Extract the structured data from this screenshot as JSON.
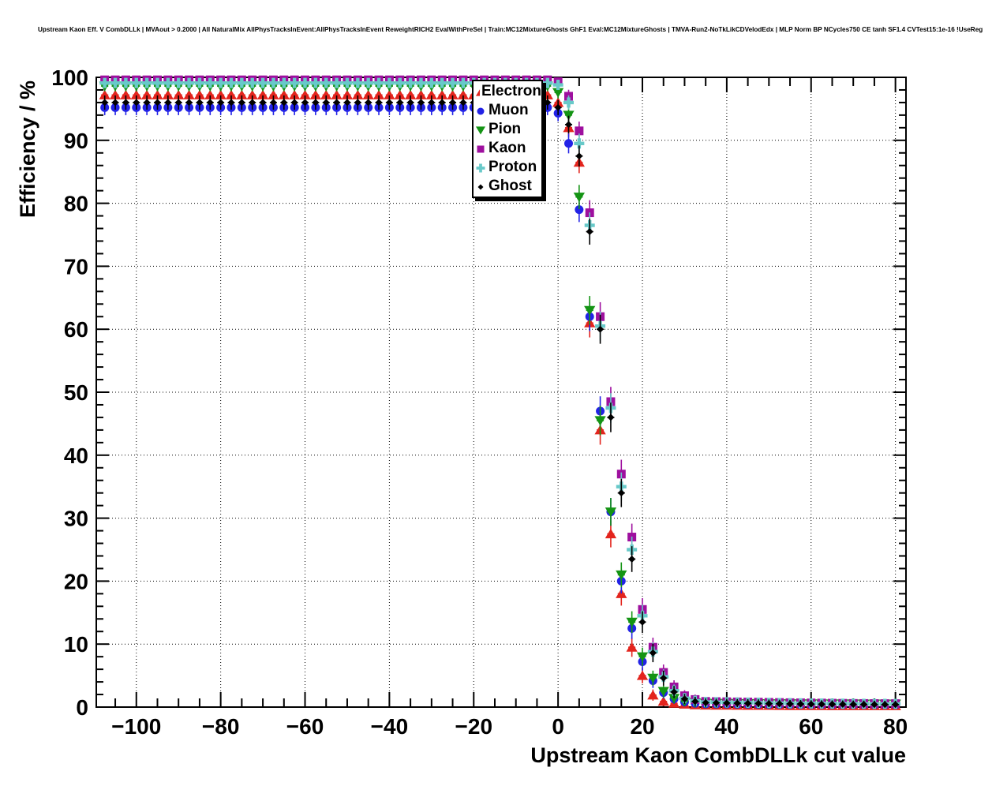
{
  "title": "Upstream Kaon Eff. V CombDLLk | MVAout > 0.2000 | All NaturalMix AllPhysTracksInEvent:AllPhysTracksInEvent ReweightRICH2 EvalWithPreSel | Train:MC12MixtureGhosts GhF1 Eval:MC12MixtureGhosts | TMVA-Run2-NoTkLikCDVelodEdx | MLP Norm BP NCycles750 CE tanh SF1.4 CVTest15:1e-16 !UseReg",
  "chart_data": {
    "type": "scatter",
    "title": "Upstream Kaon Eff. V CombDLLk | MVAout > 0.2000 | All NaturalMix AllPhysTracksInEvent:AllPhysTracksInEvent ReweightRICH2 EvalWithPreSel | Train:MC12MixtureGhosts GhF1 Eval:MC12MixtureGhosts | TMVA-Run2-NoTkLikCDVelodEdx | MLP Norm BP NCycles750 CE tanh SF1.4 CVTest15:1e-16 !UseReg",
    "xlabel": "Upstream Kaon CombDLLk cut value",
    "ylabel": "Efficiency / %",
    "xlim": [
      -109.5,
      82.5
    ],
    "ylim": [
      0,
      100
    ],
    "xticks": [
      -100,
      -80,
      -60,
      -40,
      -20,
      0,
      20,
      40,
      60,
      80
    ],
    "yticks": [
      0,
      10,
      20,
      30,
      40,
      50,
      60,
      70,
      80,
      90,
      100
    ],
    "x_minor_step": 5,
    "y_minor_step": 2,
    "grid": true,
    "legend_position": "top-center-left",
    "x": [
      -107.5,
      -105,
      -102.5,
      -100,
      -97.5,
      -95,
      -92.5,
      -90,
      -87.5,
      -85,
      -82.5,
      -80,
      -77.5,
      -75,
      -72.5,
      -70,
      -67.5,
      -65,
      -62.5,
      -60,
      -57.5,
      -55,
      -52.5,
      -50,
      -47.5,
      -45,
      -42.5,
      -40,
      -37.5,
      -35,
      -32.5,
      -30,
      -27.5,
      -25,
      -22.5,
      -20,
      -17.5,
      -15,
      -12.5,
      -10,
      -7.5,
      -5,
      -2.5,
      0,
      2.5,
      5,
      7.5,
      10,
      12.5,
      15,
      17.5,
      20,
      22.5,
      25,
      27.5,
      30,
      32.5,
      35,
      37.5,
      40,
      42.5,
      45,
      47.5,
      50,
      52.5,
      55,
      57.5,
      60,
      62.5,
      65,
      67.5,
      70,
      72.5,
      75,
      77.5,
      80
    ],
    "series": [
      {
        "name": "Electron",
        "marker": "triangle-up",
        "color": "#e3241d",
        "values": [
          97.2,
          97.2,
          97.2,
          97.2,
          97.2,
          97.2,
          97.2,
          97.2,
          97.2,
          97.2,
          97.2,
          97.2,
          97.2,
          97.2,
          97.2,
          97.2,
          97.2,
          97.2,
          97.2,
          97.2,
          97.2,
          97.2,
          97.2,
          97.2,
          97.2,
          97.2,
          97.2,
          97.2,
          97.2,
          97.2,
          97.2,
          97.2,
          97.2,
          97.2,
          97.2,
          97.2,
          97.2,
          97.2,
          97.2,
          97.2,
          97.2,
          97.2,
          97.2,
          96,
          92,
          86.5,
          61,
          44,
          27.5,
          18,
          9.5,
          5,
          1.9,
          0.9,
          0.6,
          0.45,
          0.35,
          0.3,
          0.29,
          0.28,
          0.27,
          0.26,
          0.25,
          0.25,
          0.24,
          0.23,
          0.23,
          0.22,
          0.22,
          0.21,
          0.21,
          0.2,
          0.2,
          0.2,
          0.2,
          0.2
        ]
      },
      {
        "name": "Muon",
        "marker": "circle",
        "color": "#2222e6",
        "values": [
          95.2,
          95.2,
          95.2,
          95.2,
          95.2,
          95.2,
          95.2,
          95.2,
          95.2,
          95.2,
          95.2,
          95.2,
          95.2,
          95.2,
          95.2,
          95.2,
          95.2,
          95.2,
          95.2,
          95.2,
          95.2,
          95.2,
          95.2,
          95.2,
          95.2,
          95.2,
          95.2,
          95.2,
          95.2,
          95.2,
          95.2,
          95.2,
          95.2,
          95.2,
          95.2,
          95.2,
          95.2,
          95.2,
          95.2,
          95.2,
          95.2,
          95.2,
          95.2,
          94.3,
          89.5,
          79,
          62,
          47,
          31,
          20,
          12.5,
          7.2,
          4.2,
          2.3,
          1.3,
          0.8,
          0.6,
          0.5,
          0.49,
          0.48,
          0.46,
          0.45,
          0.44,
          0.43,
          0.42,
          0.41,
          0.4,
          0.4,
          0.39,
          0.38,
          0.38,
          0.37,
          0.36,
          0.36,
          0.35,
          0.35
        ]
      },
      {
        "name": "Pion",
        "marker": "triangle-down",
        "color": "#149414",
        "values": [
          98.6,
          98.6,
          98.6,
          98.6,
          98.6,
          98.6,
          98.6,
          98.6,
          98.6,
          98.6,
          98.6,
          98.6,
          98.6,
          98.6,
          98.6,
          98.6,
          98.6,
          98.6,
          98.6,
          98.6,
          98.6,
          98.6,
          98.6,
          98.6,
          98.6,
          98.6,
          98.6,
          98.6,
          98.6,
          98.6,
          98.6,
          98.6,
          98.6,
          98.6,
          98.6,
          98.6,
          98.6,
          98.6,
          98.6,
          98.6,
          98.6,
          98.6,
          98.6,
          97.6,
          94,
          81,
          63,
          45.5,
          31,
          21,
          13.5,
          8,
          4.6,
          2.5,
          1.4,
          0.9,
          0.7,
          0.62,
          0.6,
          0.6,
          0.58,
          0.57,
          0.56,
          0.55,
          0.55,
          0.54,
          0.53,
          0.53,
          0.52,
          0.52,
          0.51,
          0.51,
          0.5,
          0.5,
          0.5,
          0.5
        ]
      },
      {
        "name": "Kaon",
        "marker": "square",
        "color": "#9e0f9e",
        "values": [
          99.6,
          99.6,
          99.6,
          99.6,
          99.6,
          99.6,
          99.6,
          99.6,
          99.6,
          99.6,
          99.6,
          99.6,
          99.6,
          99.6,
          99.6,
          99.6,
          99.6,
          99.6,
          99.6,
          99.6,
          99.6,
          99.6,
          99.6,
          99.6,
          99.6,
          99.6,
          99.6,
          99.6,
          99.6,
          99.6,
          99.6,
          99.6,
          99.6,
          99.6,
          99.6,
          99.6,
          99.6,
          99.6,
          99.6,
          99.6,
          99.6,
          99.6,
          99.6,
          99.3,
          97,
          91.5,
          78.5,
          62,
          48.5,
          37,
          27,
          15.5,
          9.5,
          5.5,
          3.2,
          1.8,
          1.2,
          0.9,
          0.87,
          0.85,
          0.82,
          0.8,
          0.78,
          0.75,
          0.73,
          0.7,
          0.68,
          0.66,
          0.64,
          0.62,
          0.6,
          0.58,
          0.57,
          0.56,
          0.55,
          0.55
        ]
      },
      {
        "name": "Proton",
        "marker": "star",
        "color": "#68c9c9",
        "values": [
          99.1,
          99.1,
          99.1,
          99.1,
          99.1,
          99.1,
          99.1,
          99.1,
          99.1,
          99.1,
          99.1,
          99.1,
          99.1,
          99.1,
          99.1,
          99.1,
          99.1,
          99.1,
          99.1,
          99.1,
          99.1,
          99.1,
          99.1,
          99.1,
          99.1,
          99.1,
          99.1,
          99.1,
          99.1,
          99.1,
          99.1,
          99.1,
          99.1,
          99.1,
          99.1,
          99.1,
          99.1,
          99.1,
          99.1,
          99.1,
          99.1,
          99.1,
          99.1,
          98.8,
          96,
          89.5,
          76.5,
          60.5,
          47.5,
          35,
          25,
          14.5,
          8.8,
          4.8,
          2.6,
          1.4,
          1,
          0.8,
          0.77,
          0.75,
          0.72,
          0.7,
          0.68,
          0.65,
          0.63,
          0.61,
          0.59,
          0.57,
          0.55,
          0.54,
          0.53,
          0.52,
          0.51,
          0.5,
          0.5,
          0.5
        ]
      },
      {
        "name": "Ghost",
        "marker": "diamond",
        "color": "#000000",
        "values": [
          96,
          96,
          96,
          96,
          96,
          96,
          96,
          96,
          96,
          96,
          96,
          96,
          96,
          96,
          96,
          96,
          96,
          96,
          96,
          96,
          96,
          96,
          96,
          96,
          96,
          96,
          96,
          96,
          96,
          96,
          96,
          96,
          96,
          96,
          96,
          96,
          96,
          96,
          96,
          96,
          96,
          96,
          96,
          95.2,
          92.5,
          87.5,
          75.5,
          60,
          46,
          34,
          23.5,
          13.5,
          8.6,
          4.6,
          2.4,
          1.3,
          0.9,
          0.7,
          0.67,
          0.65,
          0.62,
          0.6,
          0.58,
          0.55,
          0.53,
          0.51,
          0.49,
          0.47,
          0.46,
          0.45,
          0.44,
          0.43,
          0.42,
          0.41,
          0.4,
          0.4
        ]
      }
    ]
  }
}
